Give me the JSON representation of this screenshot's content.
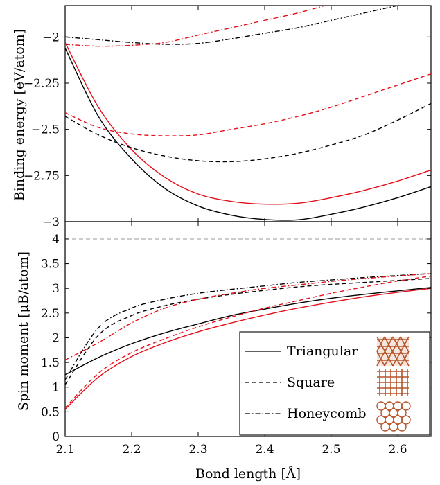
{
  "chart_data": [
    {
      "type": "line",
      "ylabel": "Binding energy [eV/atom]",
      "xlabel": "",
      "xlim": [
        2.1,
        2.65
      ],
      "ylim": [
        -3.0,
        -1.83
      ],
      "yticks": [
        -3,
        -2.75,
        -2.5,
        -2.25,
        -2
      ],
      "ytick_labels": [
        "−3",
        "−2.75",
        "−2.5",
        "−2.25",
        "−2"
      ],
      "grid": false,
      "series": [
        {
          "name": "Triangular",
          "color": "#000000",
          "dash": "solid",
          "x": [
            2.1,
            2.15,
            2.2,
            2.25,
            2.3,
            2.35,
            2.4,
            2.45,
            2.5,
            2.55,
            2.6,
            2.65
          ],
          "y": [
            -2.06,
            -2.43,
            -2.66,
            -2.82,
            -2.915,
            -2.965,
            -2.988,
            -2.99,
            -2.96,
            -2.92,
            -2.87,
            -2.81
          ]
        },
        {
          "name": "Triangular (red)",
          "color": "#e3101a",
          "dash": "solid",
          "x": [
            2.1,
            2.15,
            2.2,
            2.25,
            2.3,
            2.35,
            2.4,
            2.45,
            2.5,
            2.55,
            2.6,
            2.65
          ],
          "y": [
            -2.03,
            -2.38,
            -2.61,
            -2.76,
            -2.85,
            -2.89,
            -2.905,
            -2.9,
            -2.87,
            -2.83,
            -2.78,
            -2.72
          ]
        },
        {
          "name": "Square",
          "color": "#000000",
          "dash": "dashed",
          "x": [
            2.1,
            2.15,
            2.2,
            2.25,
            2.3,
            2.35,
            2.4,
            2.45,
            2.5,
            2.55,
            2.6,
            2.65
          ],
          "y": [
            -2.43,
            -2.53,
            -2.6,
            -2.645,
            -2.67,
            -2.675,
            -2.66,
            -2.63,
            -2.585,
            -2.53,
            -2.45,
            -2.36
          ]
        },
        {
          "name": "Square (red)",
          "color": "#e3101a",
          "dash": "dashed",
          "x": [
            2.1,
            2.15,
            2.2,
            2.25,
            2.3,
            2.35,
            2.4,
            2.45,
            2.5,
            2.55,
            2.6,
            2.65
          ],
          "y": [
            -2.41,
            -2.49,
            -2.525,
            -2.535,
            -2.53,
            -2.5,
            -2.47,
            -2.43,
            -2.38,
            -2.32,
            -2.26,
            -2.2
          ]
        },
        {
          "name": "Honeycomb",
          "color": "#000000",
          "dash": "dashdot",
          "x": [
            2.1,
            2.15,
            2.2,
            2.25,
            2.3,
            2.35,
            2.4,
            2.45,
            2.5,
            2.55,
            2.6,
            2.65
          ],
          "y": [
            -2.0,
            -2.015,
            -2.03,
            -2.04,
            -2.035,
            -2.01,
            -1.98,
            -1.95,
            -1.91,
            -1.87,
            -1.83,
            -1.8
          ]
        },
        {
          "name": "Honeycomb (red)",
          "color": "#e3101a",
          "dash": "dashdot",
          "x": [
            2.1,
            2.15,
            2.2,
            2.25,
            2.3,
            2.35,
            2.4,
            2.45,
            2.5,
            2.55,
            2.6,
            2.65
          ],
          "y": [
            -2.04,
            -2.05,
            -2.045,
            -2.03,
            -1.99,
            -1.95,
            -1.91,
            -1.87,
            -1.82,
            -1.77,
            -1.72,
            -1.67
          ]
        }
      ]
    },
    {
      "type": "line",
      "ylabel": "Spin moment [μB/atom]",
      "xlabel": "Bond length [Å]",
      "xlim": [
        2.1,
        2.65
      ],
      "ylim": [
        0,
        4.35
      ],
      "xticks": [
        2.1,
        2.2,
        2.3,
        2.4,
        2.5,
        2.6
      ],
      "xtick_labels": [
        "2.1",
        "2.2",
        "2.3",
        "2.4",
        "2.5",
        "2.6"
      ],
      "yticks": [
        0,
        0.5,
        1,
        1.5,
        2,
        2.5,
        3,
        3.5,
        4
      ],
      "ytick_labels": [
        "0",
        "0.5",
        "1",
        "1.5",
        "2",
        "2.5",
        "3",
        "3.5",
        "4"
      ],
      "reference_line": {
        "y": 4,
        "color": "#999999",
        "dash": "dashed"
      },
      "grid": false,
      "legend": {
        "placement": "bottom-right",
        "entries": [
          {
            "label": "Triangular",
            "dash": "solid"
          },
          {
            "label": "Square",
            "dash": "dashed"
          },
          {
            "label": "Honeycomb",
            "dash": "dashdot"
          }
        ]
      },
      "series": [
        {
          "name": "Triangular",
          "color": "#000000",
          "dash": "solid",
          "x": [
            2.1,
            2.15,
            2.2,
            2.25,
            2.3,
            2.35,
            2.4,
            2.45,
            2.5,
            2.55,
            2.6,
            2.65
          ],
          "y": [
            1.25,
            1.6,
            1.88,
            2.1,
            2.28,
            2.45,
            2.58,
            2.7,
            2.8,
            2.88,
            2.95,
            3.02
          ]
        },
        {
          "name": "Triangular (red)",
          "color": "#e3101a",
          "dash": "solid",
          "x": [
            2.1,
            2.15,
            2.2,
            2.25,
            2.3,
            2.35,
            2.4,
            2.45,
            2.5,
            2.55,
            2.6,
            2.65
          ],
          "y": [
            0.55,
            1.2,
            1.62,
            1.9,
            2.12,
            2.3,
            2.46,
            2.6,
            2.72,
            2.83,
            2.92,
            3.0
          ]
        },
        {
          "name": "Square",
          "color": "#000000",
          "dash": "dashed",
          "x": [
            2.1,
            2.15,
            2.2,
            2.25,
            2.3,
            2.35,
            2.4,
            2.45,
            2.5,
            2.55,
            2.6,
            2.65
          ],
          "y": [
            1.05,
            2.05,
            2.45,
            2.65,
            2.78,
            2.88,
            2.96,
            3.03,
            3.08,
            3.12,
            3.16,
            3.2
          ]
        },
        {
          "name": "Square (red)",
          "color": "#e3101a",
          "dash": "dashed",
          "x": [
            2.1,
            2.15,
            2.2,
            2.25,
            2.3,
            2.35,
            2.4,
            2.45,
            2.5,
            2.55,
            2.6,
            2.65
          ],
          "y": [
            0.58,
            1.28,
            1.7,
            1.98,
            2.22,
            2.42,
            2.6,
            2.75,
            2.9,
            3.03,
            3.15,
            3.25
          ]
        },
        {
          "name": "Honeycomb",
          "color": "#000000",
          "dash": "dashdot",
          "x": [
            2.1,
            2.15,
            2.2,
            2.25,
            2.3,
            2.35,
            2.4,
            2.45,
            2.5,
            2.55,
            2.6,
            2.65
          ],
          "y": [
            1.15,
            2.2,
            2.6,
            2.78,
            2.9,
            2.98,
            3.05,
            3.12,
            3.17,
            3.22,
            3.26,
            3.3
          ]
        },
        {
          "name": "Honeycomb (red)",
          "color": "#e3101a",
          "dash": "dashdot",
          "x": [
            2.1,
            2.15,
            2.2,
            2.25,
            2.3,
            2.35,
            2.4,
            2.45,
            2.5,
            2.55,
            2.6,
            2.65
          ],
          "y": [
            1.55,
            1.9,
            2.3,
            2.6,
            2.78,
            2.9,
            3.0,
            3.07,
            3.14,
            3.2,
            3.25,
            3.3
          ]
        }
      ]
    }
  ],
  "legend_icons": {
    "triangular": "triangular-lattice-icon",
    "square": "square-lattice-icon",
    "honeycomb": "honeycomb-lattice-icon",
    "icon_color": "#b5552a"
  }
}
